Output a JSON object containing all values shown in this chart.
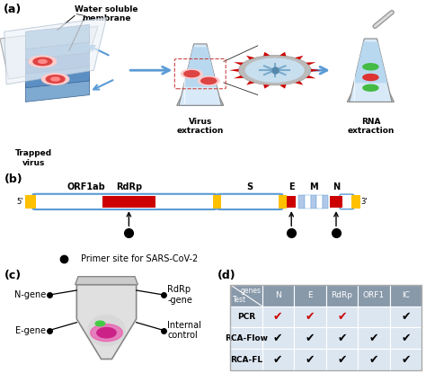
{
  "panel_labels": [
    "(a)",
    "(b)",
    "(c)",
    "(d)"
  ],
  "panel_a": {
    "title": "Water soluble\nmembrane",
    "trapped": "Trapped\nvirus",
    "virus_extraction": "Virus\nextraction",
    "rna_extraction": "RNA\nextraction"
  },
  "panel_b": {
    "legend": "Primer site for SARS-CoV-2"
  },
  "panel_d": {
    "header_genes": [
      "N",
      "E",
      "RdRp",
      "ORF1",
      "IC"
    ],
    "rows": [
      {
        "test": "PCR",
        "checks": [
          true,
          true,
          true,
          false,
          true
        ],
        "red": [
          true,
          true,
          true,
          false,
          false
        ]
      },
      {
        "test": "RCA-Flow",
        "checks": [
          true,
          true,
          true,
          true,
          true
        ],
        "red": [
          false,
          false,
          false,
          false,
          false
        ]
      },
      {
        "test": "RCA-FL",
        "checks": [
          true,
          true,
          true,
          true,
          true
        ],
        "red": [
          false,
          false,
          false,
          false,
          false
        ]
      }
    ]
  },
  "bg_color": "#ffffff",
  "blue_color": "#5b9bd5",
  "red_color": "#cc0000",
  "gold_color": "#ffc000",
  "table_header_bg": "#8899aa",
  "table_row_bg": "#dce6f1"
}
